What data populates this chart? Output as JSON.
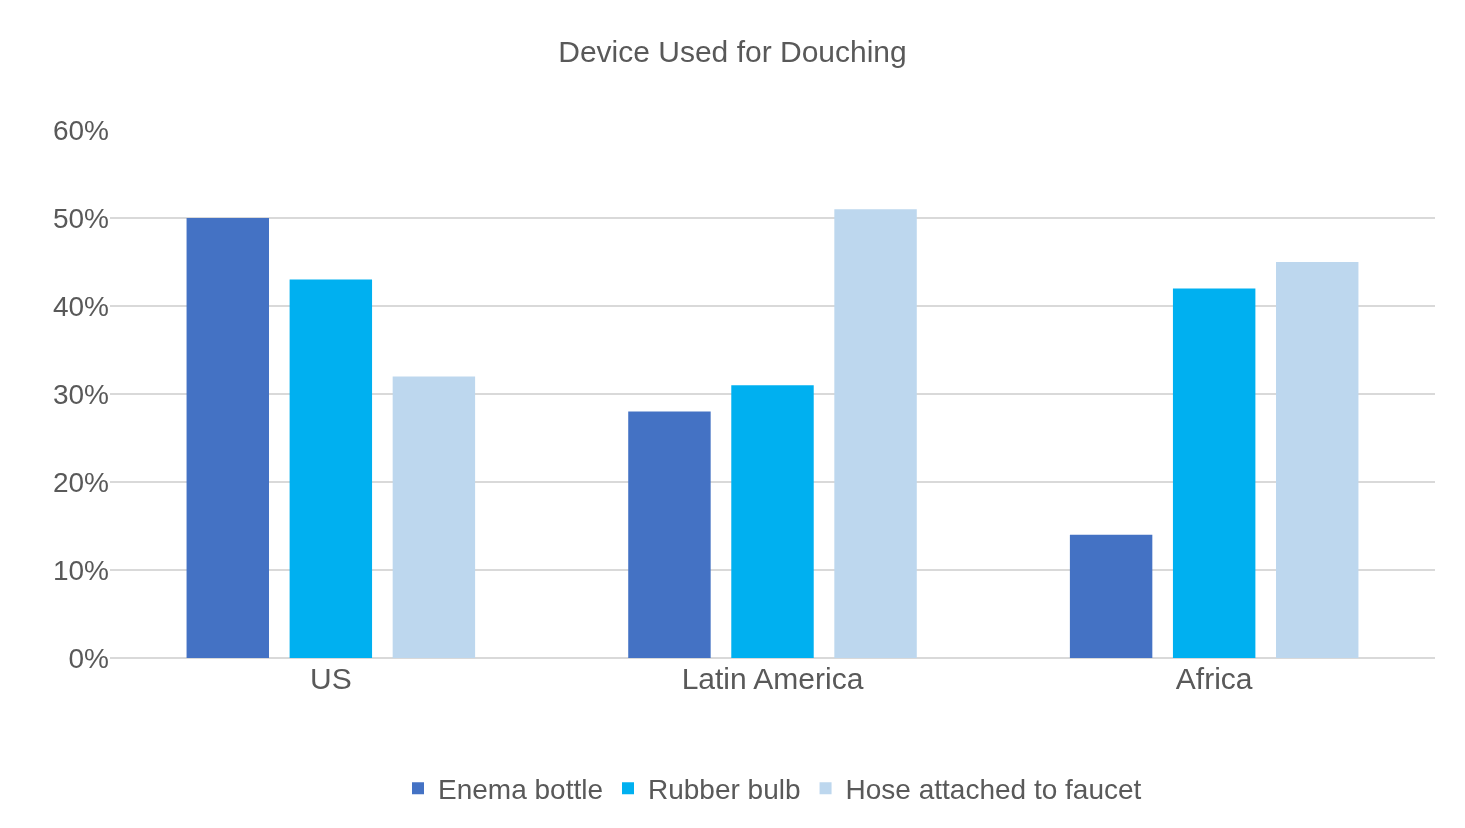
{
  "chart_data": {
    "type": "bar",
    "title": "Device Used for Douching",
    "categories": [
      "US",
      "Latin America",
      "Africa"
    ],
    "series": [
      {
        "name": "Enema bottle",
        "color": "#4472c4",
        "values": [
          50,
          28,
          14
        ]
      },
      {
        "name": "Rubber bulb",
        "color": "#00b0f0",
        "values": [
          43,
          31,
          42
        ]
      },
      {
        "name": "Hose attached to faucet",
        "color": "#bdd7ee",
        "values": [
          32,
          51,
          45
        ]
      }
    ],
    "ylim": [
      0,
      60
    ],
    "yticks": [
      {
        "value": 0,
        "label": "0%"
      },
      {
        "value": 10,
        "label": "10%"
      },
      {
        "value": 20,
        "label": "20%"
      },
      {
        "value": 30,
        "label": "30%"
      },
      {
        "value": 40,
        "label": "40%"
      },
      {
        "value": 50,
        "label": "50%"
      },
      {
        "value": 60,
        "label": "60%"
      }
    ],
    "grid": "y",
    "legend": "bottom"
  }
}
